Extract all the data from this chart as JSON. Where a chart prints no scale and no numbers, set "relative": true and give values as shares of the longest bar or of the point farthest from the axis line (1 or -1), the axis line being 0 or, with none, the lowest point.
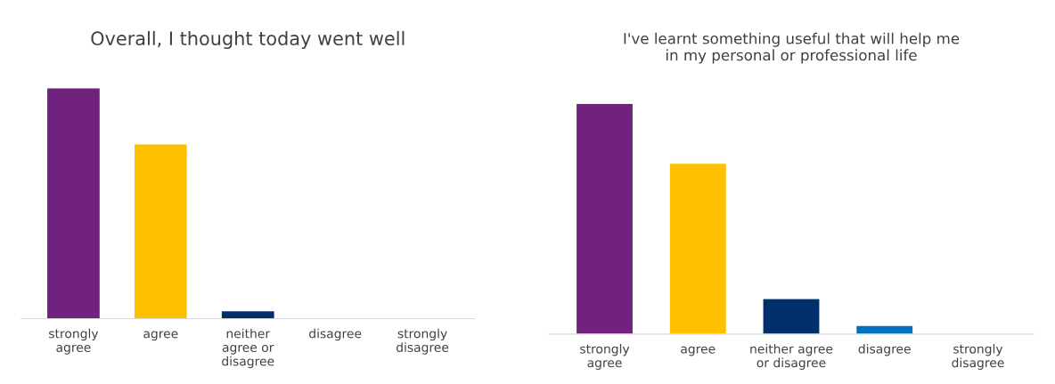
{
  "chart_data": [
    {
      "type": "bar",
      "title": "Overall, I thought today went well",
      "relative": true,
      "categories": [
        "strongly\nagree",
        "agree",
        "neither\nagree or\ndisagree",
        "disagree",
        "strongly\ndisagree"
      ],
      "values": [
        1,
        0.756,
        0.032,
        0,
        0
      ],
      "colors": [
        "#70227e",
        "#ffc000",
        "#002f6c",
        "#0070c0",
        "#5b9bd5"
      ]
    },
    {
      "type": "bar",
      "title": "I've learnt something useful that will help me\nin my personal or professional life",
      "relative": true,
      "categories": [
        "strongly\nagree",
        "agree",
        "neither agree\nor disagree",
        "disagree",
        "strongly\ndisagree"
      ],
      "values": [
        1,
        0.739,
        0.152,
        0.035,
        0
      ],
      "colors": [
        "#70227e",
        "#ffc000",
        "#002f6c",
        "#0070c0",
        "#5b9bd5"
      ]
    }
  ]
}
